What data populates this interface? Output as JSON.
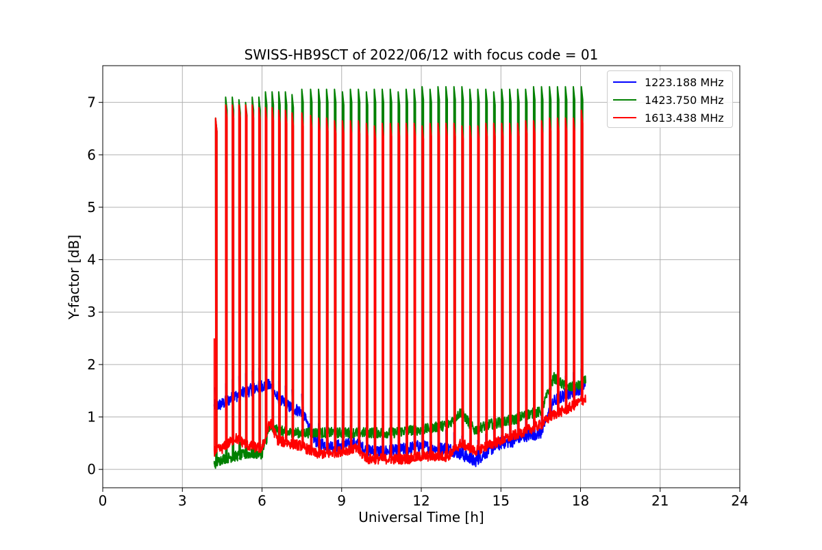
{
  "chart_data": {
    "type": "line",
    "title": "SWISS-HB9SCT of 2022/06/12 with focus code = 01",
    "xlabel": "Universal Time [h]",
    "ylabel": "Y-factor [dB]",
    "xlim": [
      0,
      24
    ],
    "ylim": [
      -0.35,
      7.7
    ],
    "xticks": [
      0,
      3,
      6,
      9,
      12,
      15,
      18,
      21,
      24
    ],
    "yticks": [
      0,
      1,
      2,
      3,
      4,
      5,
      6,
      7
    ],
    "grid": true,
    "legend_position": "top-right",
    "series": [
      {
        "name": "1223.188 MHz",
        "color": "#0000ff",
        "x": [
          4.2,
          4.5,
          5.0,
          5.5,
          6.0,
          6.3,
          6.6,
          7.0,
          7.5,
          8.0,
          8.5,
          9.0,
          9.5,
          10.0,
          10.5,
          11.0,
          11.5,
          12.0,
          12.5,
          13.0,
          13.5,
          14.0,
          14.5,
          15.0,
          15.5,
          16.0,
          16.5,
          17.0,
          17.5,
          18.0,
          18.2
        ],
        "y": [
          1.2,
          1.25,
          1.4,
          1.5,
          1.6,
          1.6,
          1.35,
          1.2,
          1.1,
          0.55,
          0.45,
          0.45,
          0.5,
          0.35,
          0.35,
          0.35,
          0.4,
          0.45,
          0.4,
          0.4,
          0.3,
          0.15,
          0.35,
          0.5,
          0.55,
          0.65,
          0.7,
          1.3,
          1.45,
          1.55,
          1.65
        ]
      },
      {
        "name": "1423.750 MHz",
        "color": "#008000",
        "x": [
          4.2,
          4.5,
          5.0,
          5.5,
          6.0,
          6.3,
          6.6,
          7.0,
          7.5,
          8.0,
          8.5,
          9.0,
          9.5,
          10.0,
          10.5,
          11.0,
          11.5,
          12.0,
          12.5,
          13.0,
          13.5,
          14.0,
          14.5,
          15.0,
          15.5,
          16.0,
          16.5,
          17.0,
          17.5,
          18.0,
          18.2
        ],
        "y": [
          0.1,
          0.2,
          0.25,
          0.3,
          0.3,
          0.8,
          0.75,
          0.7,
          0.7,
          0.7,
          0.7,
          0.7,
          0.7,
          0.7,
          0.7,
          0.7,
          0.75,
          0.75,
          0.8,
          0.85,
          1.1,
          0.75,
          0.85,
          0.9,
          0.95,
          1.05,
          1.1,
          1.75,
          1.55,
          1.6,
          1.7
        ]
      },
      {
        "name": "1613.438 MHz",
        "color": "#ff0000",
        "x": [
          4.2,
          4.5,
          5.0,
          5.5,
          6.0,
          6.3,
          6.6,
          7.0,
          7.5,
          8.0,
          8.5,
          9.0,
          9.5,
          10.0,
          10.5,
          11.0,
          11.5,
          12.0,
          12.5,
          13.0,
          13.5,
          14.0,
          14.5,
          15.0,
          15.5,
          16.0,
          16.5,
          17.0,
          17.5,
          18.0,
          18.2
        ],
        "y": [
          0.35,
          0.4,
          0.6,
          0.45,
          0.4,
          0.9,
          0.55,
          0.5,
          0.45,
          0.3,
          0.3,
          0.35,
          0.4,
          0.2,
          0.2,
          0.2,
          0.2,
          0.25,
          0.25,
          0.25,
          0.5,
          0.35,
          0.45,
          0.55,
          0.65,
          0.75,
          0.85,
          1.05,
          1.15,
          1.3,
          1.35
        ]
      }
    ],
    "calibration_spikes": {
      "x": [
        4.25,
        4.63,
        4.88,
        5.13,
        5.38,
        5.63,
        5.88,
        6.13,
        6.38,
        6.63,
        6.88,
        7.13,
        7.5,
        7.83,
        8.13,
        8.43,
        8.73,
        9.03,
        9.33,
        9.63,
        9.93,
        10.23,
        10.53,
        10.83,
        11.13,
        11.43,
        11.73,
        12.03,
        12.33,
        12.63,
        12.93,
        13.23,
        13.53,
        13.83,
        14.13,
        14.43,
        14.73,
        15.03,
        15.33,
        15.63,
        15.93,
        16.23,
        16.53,
        16.83,
        17.13,
        17.43,
        17.73,
        18.03
      ],
      "green_peak": [
        6.7,
        7.1,
        7.1,
        7.05,
        7.0,
        7.1,
        7.1,
        7.2,
        7.2,
        7.2,
        7.2,
        7.15,
        7.25,
        7.25,
        7.25,
        7.25,
        7.25,
        7.2,
        7.25,
        7.25,
        7.2,
        7.25,
        7.25,
        7.25,
        7.2,
        7.25,
        7.25,
        7.3,
        7.25,
        7.3,
        7.3,
        7.3,
        7.3,
        7.25,
        7.25,
        7.25,
        7.2,
        7.25,
        7.25,
        7.25,
        7.25,
        7.3,
        7.3,
        7.3,
        7.3,
        7.3,
        7.3,
        7.3
      ],
      "red_peak": [
        6.7,
        6.95,
        6.95,
        6.95,
        6.95,
        6.95,
        6.9,
        6.9,
        6.9,
        6.85,
        6.85,
        6.8,
        6.8,
        6.75,
        6.7,
        6.7,
        6.65,
        6.65,
        6.65,
        6.65,
        6.6,
        6.55,
        6.6,
        6.6,
        6.6,
        6.6,
        6.6,
        6.55,
        6.6,
        6.6,
        6.6,
        6.6,
        6.55,
        6.55,
        6.55,
        6.6,
        6.6,
        6.6,
        6.6,
        6.6,
        6.65,
        6.65,
        6.65,
        6.7,
        6.7,
        6.7,
        6.7,
        6.85
      ]
    }
  }
}
